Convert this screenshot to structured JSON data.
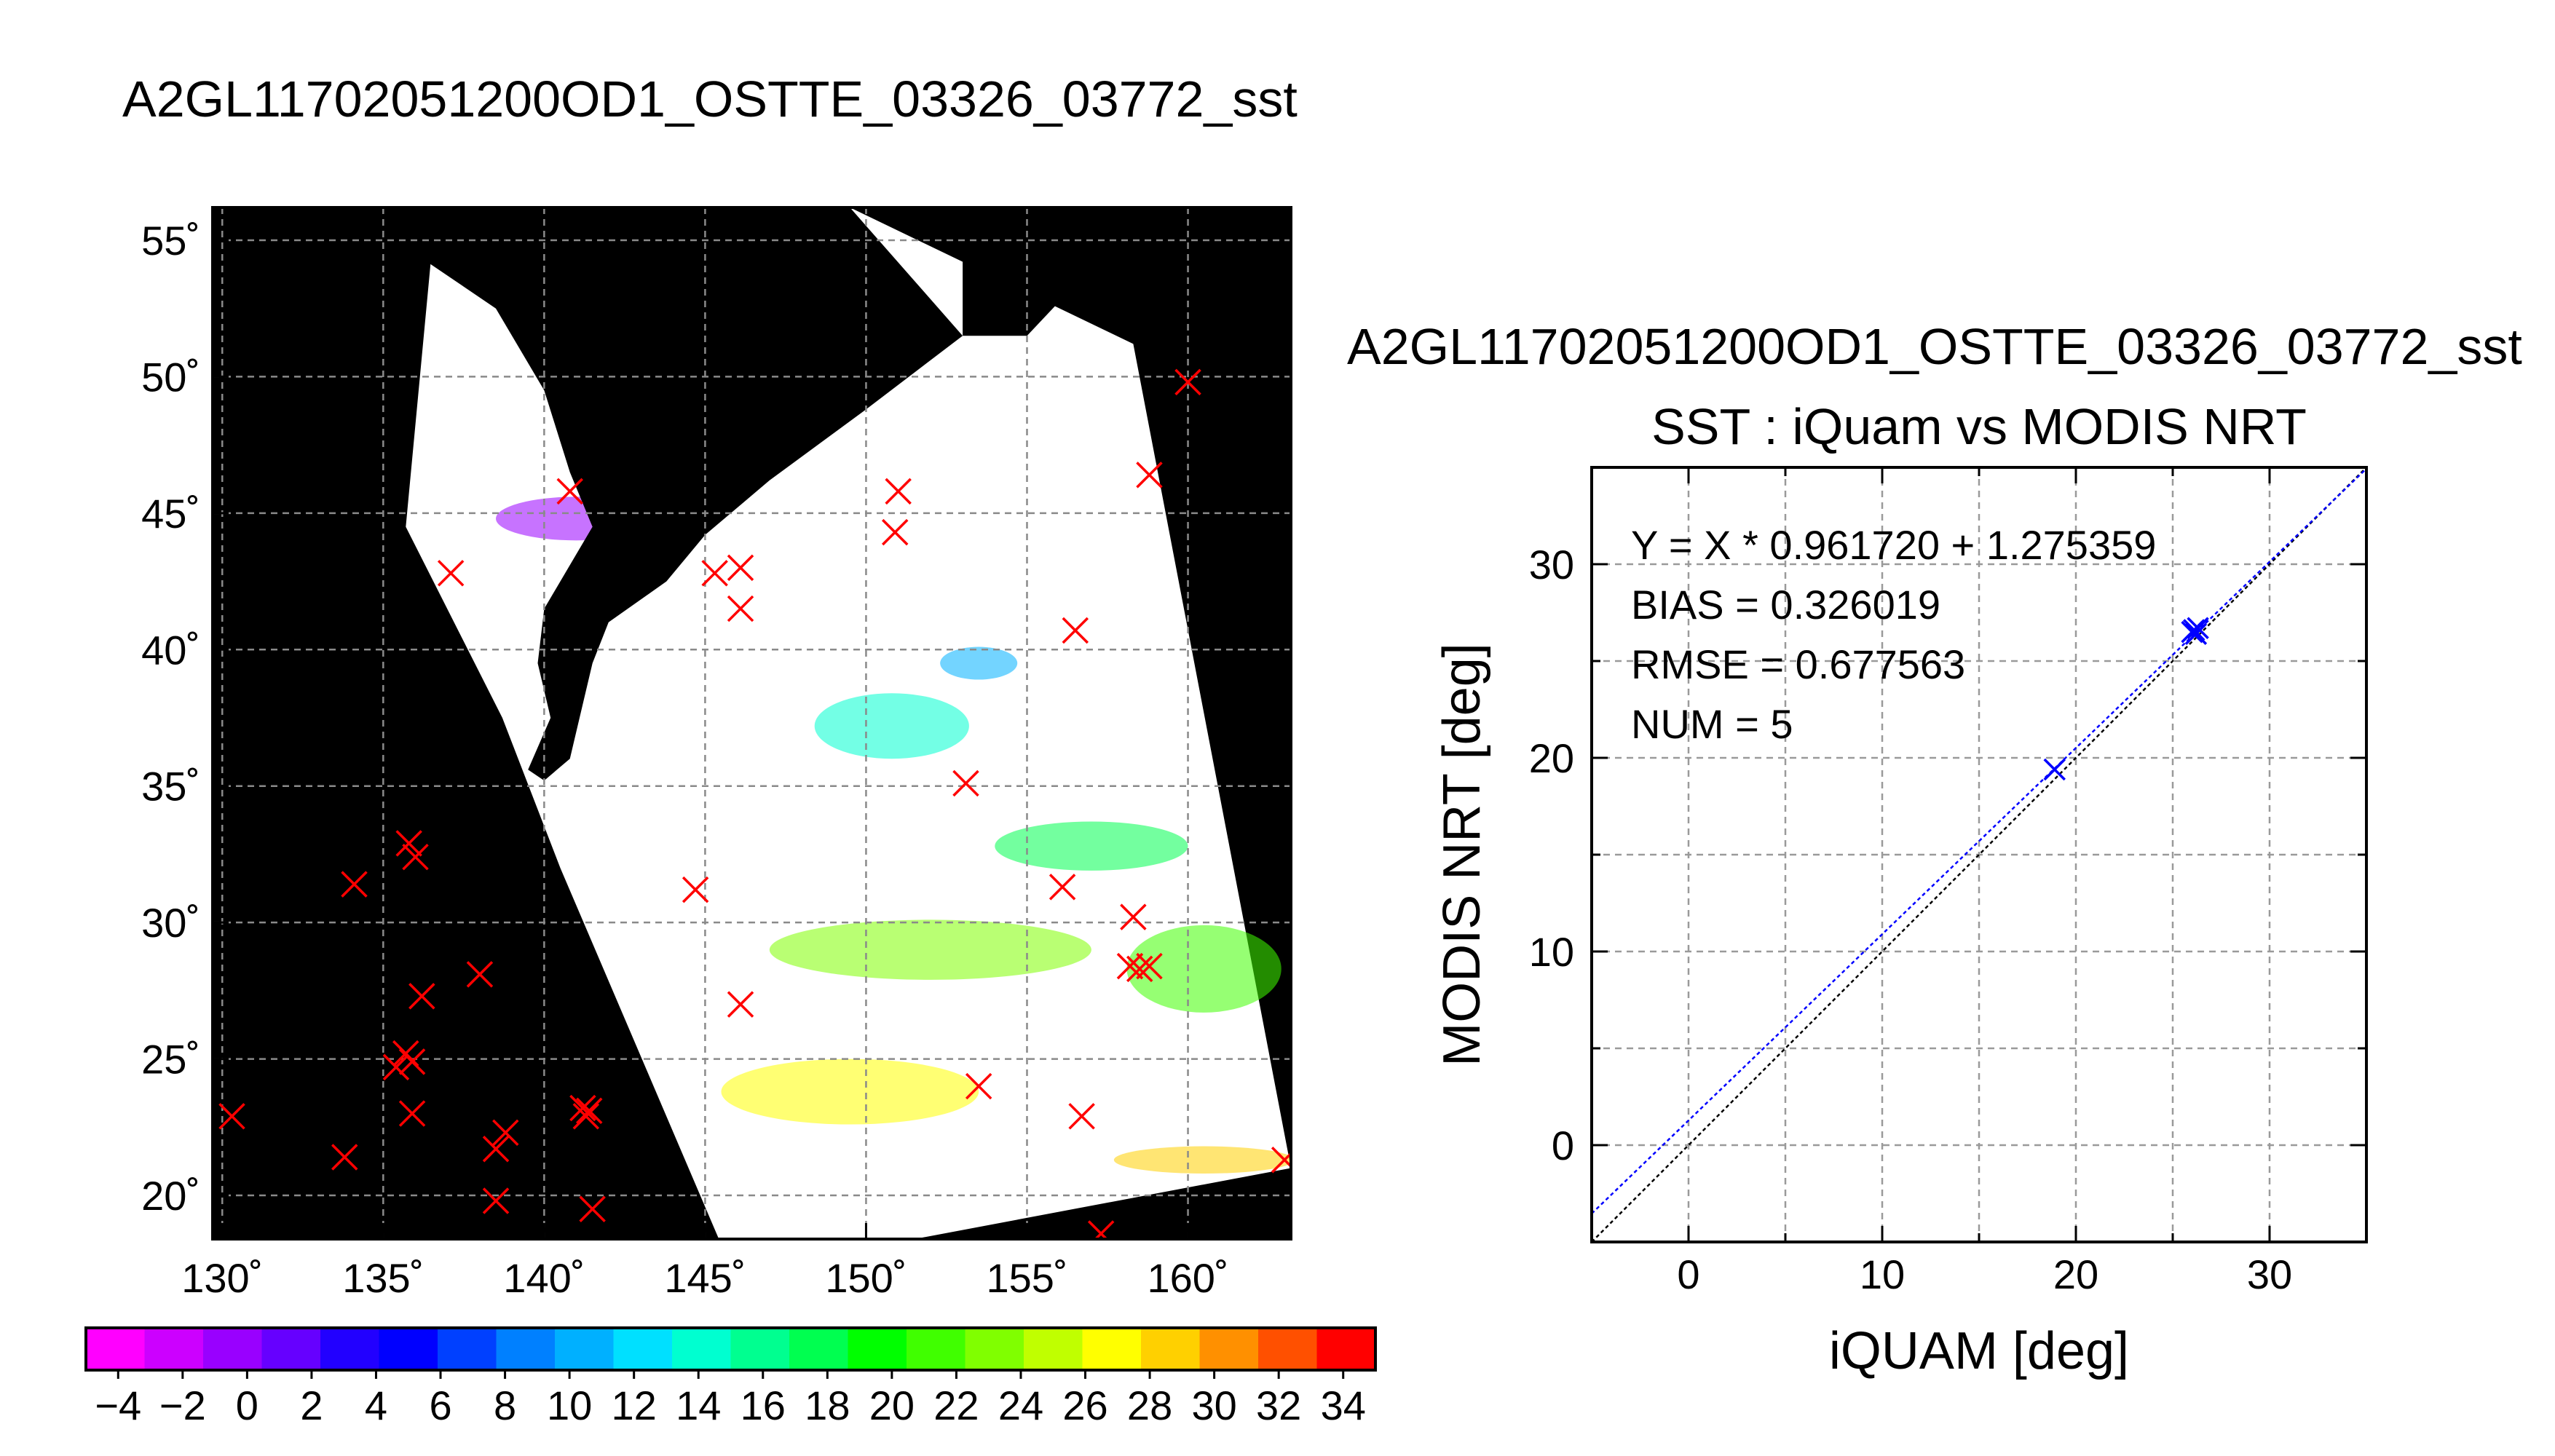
{
  "chart_data": [
    {
      "type": "heatmap",
      "title": "A2GL11702051200OD1_OSTTE_03326_03772_sst",
      "x_tick_labels": [
        "130˚",
        "135˚",
        "140˚",
        "145˚",
        "150˚",
        "155˚",
        "160˚"
      ],
      "y_tick_labels": [
        "55˚",
        "50˚",
        "45˚",
        "40˚",
        "35˚",
        "30˚",
        "25˚",
        "20˚"
      ],
      "x_ticks": [
        130,
        135,
        140,
        145,
        150,
        155,
        160
      ],
      "y_ticks": [
        55,
        50,
        45,
        40,
        35,
        30,
        25,
        20
      ],
      "xlim": [
        129.7,
        163.2
      ],
      "ylim": [
        18.4,
        56.2
      ],
      "grid": true,
      "swath_outline": [
        [
          136.5,
          54.5
        ],
        [
          149.5,
          56.2
        ],
        [
          158.3,
          51.2
        ],
        [
          163.2,
          21.0
        ],
        [
          151.5,
          18.4
        ],
        [
          145.5,
          18.2
        ],
        [
          140.5,
          32.0
        ],
        [
          138.7,
          37.5
        ],
        [
          135.7,
          44.5
        ]
      ],
      "land_mask": [
        [
          [
            134.5,
            56.2
          ],
          [
            149.5,
            56.2
          ],
          [
            153.0,
            51.5
          ],
          [
            150.0,
            48.8
          ],
          [
            147.0,
            46.2
          ],
          [
            145.0,
            44.2
          ],
          [
            143.8,
            42.5
          ],
          [
            142.0,
            41.0
          ],
          [
            141.5,
            39.5
          ],
          [
            141.2,
            38.0
          ],
          [
            140.8,
            36.0
          ],
          [
            140.0,
            35.2
          ],
          [
            139.5,
            35.6
          ],
          [
            140.2,
            37.5
          ],
          [
            139.8,
            39.5
          ],
          [
            140.0,
            41.5
          ],
          [
            140.5,
            42.5
          ],
          [
            141.5,
            44.5
          ],
          [
            140.8,
            46.5
          ],
          [
            140.0,
            49.5
          ],
          [
            138.5,
            52.5
          ],
          [
            136.0,
            54.5
          ]
        ],
        [
          [
            142.0,
            54.0
          ],
          [
            143.2,
            52.0
          ],
          [
            143.5,
            49.5
          ],
          [
            142.5,
            47.0
          ],
          [
            142.0,
            46.0
          ],
          [
            141.8,
            48.5
          ],
          [
            141.6,
            51.5
          ]
        ],
        [
          [
            153.0,
            56.2
          ],
          [
            157.0,
            56.2
          ],
          [
            156.2,
            53.0
          ],
          [
            155.0,
            51.5
          ],
          [
            153.0,
            51.5
          ]
        ]
      ],
      "sst_patches": [
        {
          "lon": 141.0,
          "lat": 44.8,
          "rx": 2.5,
          "ry": 0.8,
          "value": 0
        },
        {
          "lon": 150.8,
          "lat": 37.2,
          "rx": 2.4,
          "ry": 1.2,
          "value": 14
        },
        {
          "lon": 153.5,
          "lat": 39.5,
          "rx": 1.2,
          "ry": 0.6,
          "value": 10
        },
        {
          "lon": 157.0,
          "lat": 32.8,
          "rx": 3.0,
          "ry": 0.9,
          "value": 18
        },
        {
          "lon": 160.5,
          "lat": 28.3,
          "rx": 2.4,
          "ry": 1.6,
          "value": 21
        },
        {
          "lon": 152.0,
          "lat": 29.0,
          "rx": 5.0,
          "ry": 1.1,
          "value": 24
        },
        {
          "lon": 149.5,
          "lat": 23.8,
          "rx": 4.0,
          "ry": 1.2,
          "value": 26
        },
        {
          "lon": 160.5,
          "lat": 21.3,
          "rx": 2.8,
          "ry": 0.5,
          "value": 28
        }
      ],
      "matchups": [
        {
          "lon": 160.0,
          "lat": 49.8
        },
        {
          "lon": 158.8,
          "lat": 46.4
        },
        {
          "lon": 140.8,
          "lat": 45.8
        },
        {
          "lon": 151.0,
          "lat": 45.8
        },
        {
          "lon": 150.9,
          "lat": 44.3
        },
        {
          "lon": 137.1,
          "lat": 42.8
        },
        {
          "lon": 145.3,
          "lat": 42.8
        },
        {
          "lon": 146.1,
          "lat": 43.0
        },
        {
          "lon": 146.1,
          "lat": 41.5
        },
        {
          "lon": 156.5,
          "lat": 40.7
        },
        {
          "lon": 153.1,
          "lat": 35.1
        },
        {
          "lon": 134.1,
          "lat": 31.4
        },
        {
          "lon": 135.8,
          "lat": 32.9
        },
        {
          "lon": 136.0,
          "lat": 32.4
        },
        {
          "lon": 144.7,
          "lat": 31.2
        },
        {
          "lon": 156.1,
          "lat": 31.3
        },
        {
          "lon": 158.3,
          "lat": 30.2
        },
        {
          "lon": 158.2,
          "lat": 28.4
        },
        {
          "lon": 158.5,
          "lat": 28.3
        },
        {
          "lon": 158.8,
          "lat": 28.4
        },
        {
          "lon": 138.0,
          "lat": 28.1
        },
        {
          "lon": 136.2,
          "lat": 27.3
        },
        {
          "lon": 146.1,
          "lat": 27.0
        },
        {
          "lon": 135.4,
          "lat": 24.7
        },
        {
          "lon": 135.7,
          "lat": 25.2
        },
        {
          "lon": 135.9,
          "lat": 24.9
        },
        {
          "lon": 135.9,
          "lat": 23.0
        },
        {
          "lon": 153.5,
          "lat": 24.0
        },
        {
          "lon": 141.2,
          "lat": 23.2
        },
        {
          "lon": 141.3,
          "lat": 22.9
        },
        {
          "lon": 141.4,
          "lat": 23.1
        },
        {
          "lon": 130.3,
          "lat": 22.9
        },
        {
          "lon": 138.8,
          "lat": 22.3
        },
        {
          "lon": 138.5,
          "lat": 21.7
        },
        {
          "lon": 156.7,
          "lat": 22.9
        },
        {
          "lon": 133.8,
          "lat": 21.4
        },
        {
          "lon": 138.5,
          "lat": 19.8
        },
        {
          "lon": 141.5,
          "lat": 19.5
        },
        {
          "lon": 157.3,
          "lat": 18.6
        },
        {
          "lon": 163.0,
          "lat": 21.3
        }
      ]
    },
    {
      "type": "bar",
      "categories": [
        "−4",
        "−2",
        "0",
        "2",
        "4",
        "6",
        "8",
        "10",
        "12",
        "14",
        "16",
        "18",
        "20",
        "22",
        "24",
        "26",
        "28",
        "30",
        "32",
        "34"
      ],
      "range": [
        -5,
        35
      ],
      "colors": [
        "#ff00ff",
        "#cc00ff",
        "#9900ff",
        "#6600ff",
        "#2200ff",
        "#0000ff",
        "#0040ff",
        "#0080ff",
        "#00b0ff",
        "#00e0ff",
        "#00ffd0",
        "#00ff90",
        "#00ff50",
        "#00ff00",
        "#40ff00",
        "#80ff00",
        "#c0ff00",
        "#ffff00",
        "#ffd000",
        "#ff9000",
        "#ff5000",
        "#ff0000"
      ]
    },
    {
      "type": "scatter",
      "title": "A2GL11702051200OD1_OSTTE_03326_03772_sst",
      "subtitle": "SST : iQuam vs MODIS NRT",
      "xlabel": "iQUAM [deg]",
      "ylabel": "MODIS NRT [deg]",
      "xlim": [
        -5,
        35
      ],
      "ylim": [
        -5,
        35
      ],
      "x_ticks": [
        0,
        10,
        20,
        30
      ],
      "y_ticks": [
        0,
        10,
        20,
        30
      ],
      "grid": true,
      "points": [
        [
          18.9,
          19.4
        ],
        [
          26.1,
          26.6
        ],
        [
          26.2,
          26.4
        ],
        [
          26.3,
          26.7
        ],
        [
          26.0,
          26.5
        ]
      ],
      "fit": {
        "slope": 0.96172,
        "intercept": 1.275359
      },
      "annotations": [
        "Y = X * 0.961720 + 1.275359",
        "BIAS = 0.326019",
        "RMSE = 0.677563",
        "NUM = 5"
      ]
    }
  ]
}
